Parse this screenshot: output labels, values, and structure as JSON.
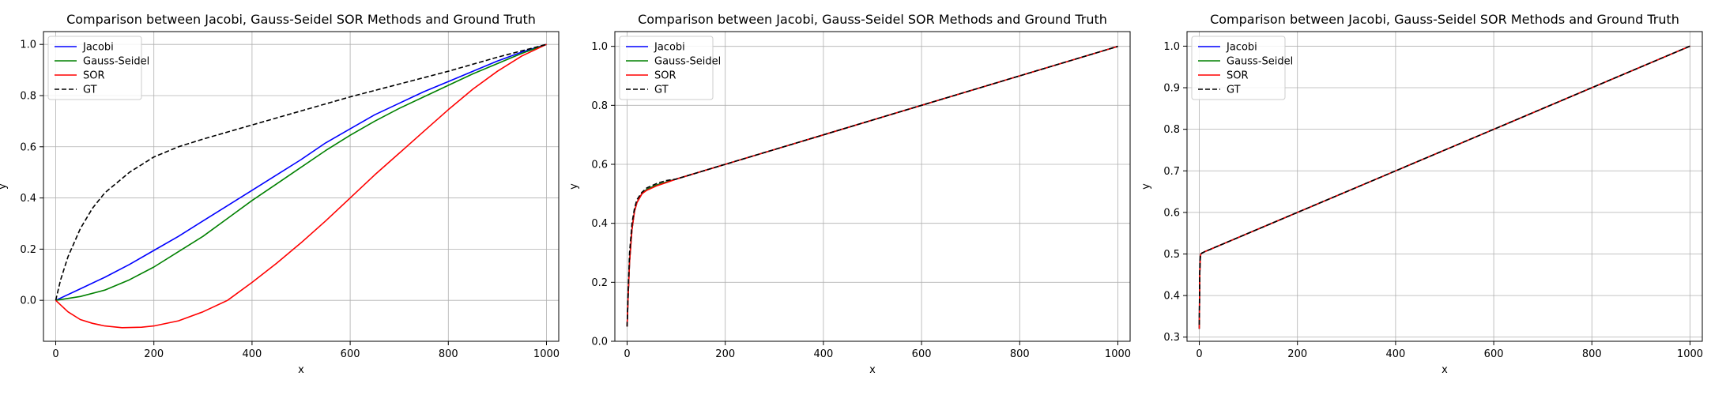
{
  "chart_data": [
    {
      "type": "line",
      "title": "Comparison between Jacobi, Gauss-Seidel SOR Methods and Ground Truth",
      "xlabel": "x",
      "ylabel": "y",
      "xlim": [
        -25,
        1025
      ],
      "ylim": [
        -0.16,
        1.05
      ],
      "xticks": [
        0,
        200,
        400,
        600,
        800,
        1000
      ],
      "yticks": [
        0.0,
        0.2,
        0.4,
        0.6,
        0.8,
        1.0
      ],
      "ytick_labels": [
        "0.0",
        "0.2",
        "0.4",
        "0.6",
        "0.8",
        "1.0"
      ],
      "grid": true,
      "legend": "top-left",
      "series": [
        {
          "name": "Jacobi",
          "color": "#0000ff",
          "dashed": false,
          "x": [
            0,
            50,
            100,
            150,
            200,
            250,
            300,
            350,
            400,
            450,
            500,
            550,
            600,
            650,
            700,
            750,
            800,
            850,
            900,
            950,
            1000
          ],
          "y": [
            0.0,
            0.045,
            0.09,
            0.14,
            0.195,
            0.25,
            0.31,
            0.37,
            0.43,
            0.49,
            0.55,
            0.615,
            0.67,
            0.725,
            0.77,
            0.815,
            0.855,
            0.895,
            0.935,
            0.97,
            1.0
          ]
        },
        {
          "name": "Gauss-Seidel",
          "color": "#008000",
          "dashed": false,
          "x": [
            0,
            50,
            100,
            150,
            200,
            250,
            300,
            350,
            400,
            450,
            500,
            550,
            600,
            650,
            700,
            750,
            800,
            850,
            900,
            950,
            1000
          ],
          "y": [
            0.0,
            0.015,
            0.04,
            0.08,
            0.13,
            0.19,
            0.25,
            0.32,
            0.39,
            0.455,
            0.52,
            0.585,
            0.645,
            0.7,
            0.75,
            0.795,
            0.84,
            0.885,
            0.925,
            0.965,
            1.0
          ]
        },
        {
          "name": "SOR",
          "color": "#ff0000",
          "dashed": false,
          "x": [
            0,
            25,
            50,
            75,
            100,
            135,
            175,
            200,
            250,
            300,
            350,
            400,
            450,
            500,
            550,
            600,
            650,
            700,
            750,
            800,
            850,
            900,
            950,
            1000
          ],
          "y": [
            0.0,
            -0.045,
            -0.075,
            -0.09,
            -0.1,
            -0.107,
            -0.105,
            -0.1,
            -0.08,
            -0.045,
            0.0,
            0.07,
            0.145,
            0.225,
            0.31,
            0.4,
            0.49,
            0.575,
            0.66,
            0.745,
            0.825,
            0.895,
            0.955,
            1.0
          ]
        },
        {
          "name": "GT",
          "color": "#000000",
          "dashed": true,
          "x": [
            0,
            10,
            25,
            50,
            75,
            100,
            150,
            200,
            250,
            300,
            400,
            500,
            600,
            700,
            800,
            900,
            1000
          ],
          "y": [
            0.0,
            0.08,
            0.17,
            0.28,
            0.36,
            0.42,
            0.5,
            0.56,
            0.6,
            0.63,
            0.685,
            0.74,
            0.795,
            0.845,
            0.895,
            0.95,
            1.0
          ]
        }
      ]
    },
    {
      "type": "line",
      "title": "Comparison between Jacobi, Gauss-Seidel SOR Methods and Ground Truth",
      "xlabel": "x",
      "ylabel": "y",
      "xlim": [
        -25,
        1025
      ],
      "ylim": [
        0.0,
        1.05
      ],
      "xticks": [
        0,
        200,
        400,
        600,
        800,
        1000
      ],
      "yticks": [
        0.0,
        0.2,
        0.4,
        0.6,
        0.8,
        1.0
      ],
      "ytick_labels": [
        "0.0",
        "0.2",
        "0.4",
        "0.6",
        "0.8",
        "1.0"
      ],
      "grid": true,
      "legend": "top-left",
      "series": [
        {
          "name": "Jacobi",
          "color": "#0000ff",
          "dashed": false,
          "x": [
            0,
            2,
            5,
            10,
            15,
            20,
            30,
            40,
            60,
            80,
            100,
            200,
            400,
            600,
            800,
            1000
          ],
          "y": [
            0.05,
            0.15,
            0.27,
            0.38,
            0.44,
            0.47,
            0.5,
            0.515,
            0.53,
            0.54,
            0.55,
            0.6,
            0.7,
            0.8,
            0.9,
            1.0
          ]
        },
        {
          "name": "Gauss-Seidel",
          "color": "#008000",
          "dashed": false,
          "x": [
            0,
            2,
            5,
            10,
            15,
            20,
            30,
            40,
            60,
            80,
            100,
            200,
            400,
            600,
            800,
            1000
          ],
          "y": [
            0.05,
            0.15,
            0.27,
            0.38,
            0.44,
            0.47,
            0.5,
            0.515,
            0.53,
            0.54,
            0.55,
            0.6,
            0.7,
            0.8,
            0.9,
            1.0
          ]
        },
        {
          "name": "SOR",
          "color": "#ff0000",
          "dashed": false,
          "x": [
            0,
            2,
            5,
            10,
            15,
            20,
            30,
            40,
            60,
            80,
            100,
            200,
            400,
            600,
            800,
            1000
          ],
          "y": [
            0.05,
            0.15,
            0.27,
            0.38,
            0.44,
            0.47,
            0.5,
            0.512,
            0.527,
            0.538,
            0.55,
            0.6,
            0.7,
            0.8,
            0.9,
            1.0
          ]
        },
        {
          "name": "GT",
          "color": "#000000",
          "dashed": true,
          "x": [
            0,
            2,
            5,
            10,
            15,
            20,
            30,
            40,
            60,
            80,
            100,
            200,
            400,
            600,
            800,
            1000
          ],
          "y": [
            0.05,
            0.17,
            0.3,
            0.4,
            0.45,
            0.48,
            0.505,
            0.52,
            0.535,
            0.545,
            0.55,
            0.6,
            0.7,
            0.8,
            0.9,
            1.0
          ]
        }
      ]
    },
    {
      "type": "line",
      "title": "Comparison between Jacobi, Gauss-Seidel SOR Methods and Ground Truth",
      "xlabel": "x",
      "ylabel": "y",
      "xlim": [
        -25,
        1025
      ],
      "ylim": [
        0.29,
        1.035
      ],
      "xticks": [
        0,
        200,
        400,
        600,
        800,
        1000
      ],
      "yticks": [
        0.3,
        0.4,
        0.5,
        0.6,
        0.7,
        0.8,
        0.9,
        1.0
      ],
      "ytick_labels": [
        "0.3",
        "0.4",
        "0.5",
        "0.6",
        "0.7",
        "0.8",
        "0.9",
        "1.0"
      ],
      "grid": true,
      "legend": "top-left",
      "series": [
        {
          "name": "Jacobi",
          "color": "#0000ff",
          "dashed": false,
          "x": [
            0,
            1,
            2,
            3,
            5,
            10,
            200,
            400,
            600,
            800,
            1000
          ],
          "y": [
            0.32,
            0.45,
            0.49,
            0.5,
            0.502,
            0.505,
            0.6,
            0.7,
            0.8,
            0.9,
            1.0
          ]
        },
        {
          "name": "Gauss-Seidel",
          "color": "#008000",
          "dashed": false,
          "x": [
            0,
            1,
            2,
            3,
            5,
            10,
            200,
            400,
            600,
            800,
            1000
          ],
          "y": [
            0.32,
            0.45,
            0.49,
            0.5,
            0.502,
            0.505,
            0.6,
            0.7,
            0.8,
            0.9,
            1.0
          ]
        },
        {
          "name": "SOR",
          "color": "#ff0000",
          "dashed": false,
          "x": [
            0,
            1,
            2,
            3,
            5,
            10,
            200,
            400,
            600,
            800,
            1000
          ],
          "y": [
            0.32,
            0.45,
            0.49,
            0.5,
            0.502,
            0.505,
            0.6,
            0.7,
            0.8,
            0.9,
            1.0
          ]
        },
        {
          "name": "GT",
          "color": "#000000",
          "dashed": true,
          "x": [
            0,
            1,
            2,
            3,
            5,
            10,
            200,
            400,
            600,
            800,
            1000
          ],
          "y": [
            0.33,
            0.46,
            0.495,
            0.5,
            0.502,
            0.505,
            0.6,
            0.7,
            0.8,
            0.9,
            1.0
          ]
        }
      ]
    }
  ]
}
